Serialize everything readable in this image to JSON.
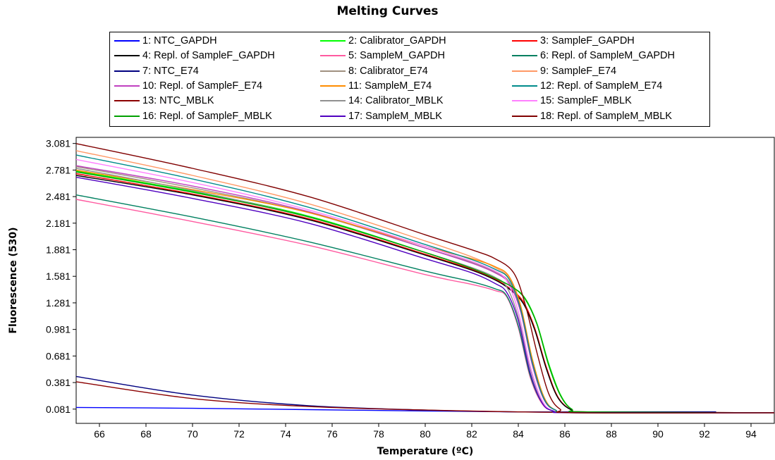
{
  "chart_data": {
    "type": "line",
    "title": "Melting Curves",
    "xlabel": "Temperature (ºC)",
    "ylabel": "Fluorescence (530)",
    "xlim": [
      65,
      95
    ],
    "ylim": [
      -0.08,
      3.15
    ],
    "x_ticks": [
      66,
      68,
      70,
      72,
      74,
      76,
      78,
      80,
      82,
      84,
      86,
      88,
      90,
      92,
      94
    ],
    "y_ticks": [
      0.081,
      0.381,
      0.681,
      0.981,
      1.281,
      1.581,
      1.881,
      2.181,
      2.481,
      2.781,
      3.081
    ],
    "y_tick_labels": [
      "0.081",
      "0.381",
      "0.681",
      "0.981",
      "1.281",
      "1.581",
      "1.881",
      "2.181",
      "2.481",
      "2.781",
      "3.081"
    ],
    "grid": false,
    "legend_position": "top",
    "series": [
      {
        "name": "1: NTC_GAPDH",
        "color": "#0000ff",
        "x": [
          65,
          70,
          75,
          80,
          84,
          88,
          95
        ],
        "y": [
          0.1,
          0.09,
          0.075,
          0.06,
          0.05,
          0.045,
          0.04
        ]
      },
      {
        "name": "2: Calibrator_GAPDH",
        "color": "#00ff00",
        "x": [
          65,
          70,
          75,
          80,
          82,
          83,
          83.8,
          84.3,
          84.8,
          85.3,
          85.8,
          86.3,
          87,
          95
        ],
        "y": [
          2.77,
          2.54,
          2.26,
          1.85,
          1.67,
          1.56,
          1.45,
          1.33,
          1.05,
          0.6,
          0.25,
          0.08,
          0.05,
          0.04
        ]
      },
      {
        "name": "3: SampleF_GAPDH",
        "color": "#ff0000",
        "x": [
          65,
          70,
          75,
          80,
          82,
          83,
          83.6,
          84.2,
          84.7,
          85.2,
          85.7,
          86.3,
          87,
          95
        ],
        "y": [
          2.74,
          2.51,
          2.23,
          1.83,
          1.66,
          1.55,
          1.45,
          1.3,
          1.0,
          0.56,
          0.22,
          0.07,
          0.05,
          0.04
        ]
      },
      {
        "name": "4: Repl. of SampleF_GAPDH",
        "color": "#000000",
        "x": [
          65,
          70,
          75,
          80,
          82,
          83,
          83.6,
          84.2,
          84.7,
          85.2,
          85.7,
          86.3,
          87,
          95
        ],
        "y": [
          2.72,
          2.5,
          2.22,
          1.82,
          1.65,
          1.54,
          1.44,
          1.28,
          0.98,
          0.54,
          0.21,
          0.07,
          0.05,
          0.04
        ]
      },
      {
        "name": "5: SampleM_GAPDH",
        "color": "#ff5aa0",
        "x": [
          65,
          70,
          75,
          80,
          82,
          83,
          83.5,
          84,
          84.5,
          85,
          85.5,
          86.5,
          95
        ],
        "y": [
          2.45,
          2.2,
          1.93,
          1.6,
          1.49,
          1.42,
          1.35,
          1.0,
          0.45,
          0.15,
          0.06,
          0.04,
          0.04
        ]
      },
      {
        "name": "6: Repl. of SampleM_GAPDH",
        "color": "#008060",
        "x": [
          65,
          70,
          75,
          80,
          82,
          83,
          83.5,
          84,
          84.5,
          85,
          85.5,
          86.5,
          95
        ],
        "y": [
          2.5,
          2.25,
          1.97,
          1.64,
          1.52,
          1.44,
          1.36,
          1.02,
          0.47,
          0.16,
          0.06,
          0.04,
          0.04
        ]
      },
      {
        "name": "7: NTC_E74",
        "color": "#000080",
        "x": [
          65,
          70,
          75,
          80,
          84,
          88,
          92.5
        ],
        "y": [
          0.45,
          0.24,
          0.12,
          0.07,
          0.05,
          0.05,
          0.05
        ]
      },
      {
        "name": "8: Calibrator_E74",
        "color": "#a09080",
        "x": [
          65,
          70,
          75,
          80,
          82,
          83,
          83.6,
          84.1,
          84.6,
          85.1,
          85.6,
          86.5,
          95
        ],
        "y": [
          2.82,
          2.58,
          2.3,
          1.9,
          1.74,
          1.63,
          1.52,
          1.2,
          0.6,
          0.2,
          0.07,
          0.04,
          0.04
        ]
      },
      {
        "name": "9: SampleF_E74",
        "color": "#ff9966",
        "x": [
          65,
          70,
          75,
          80,
          82,
          83,
          83.6,
          84.1,
          84.6,
          85.1,
          85.6,
          86.5,
          95
        ],
        "y": [
          3.0,
          2.72,
          2.4,
          1.98,
          1.8,
          1.68,
          1.56,
          1.22,
          0.62,
          0.21,
          0.07,
          0.04,
          0.04
        ]
      },
      {
        "name": "10: Repl. of SampleF_E74",
        "color": "#c040c0",
        "x": [
          65,
          70,
          75,
          80,
          82,
          83,
          83.6,
          84.1,
          84.6,
          85.1,
          85.6,
          86.5,
          95
        ],
        "y": [
          2.83,
          2.6,
          2.31,
          1.9,
          1.73,
          1.62,
          1.5,
          1.18,
          0.58,
          0.19,
          0.07,
          0.04,
          0.04
        ]
      },
      {
        "name": "11: SampleM_E74",
        "color": "#ff8c00",
        "x": [
          65,
          70,
          75,
          80,
          82,
          83,
          83.6,
          84.1,
          84.6,
          85.1,
          85.6,
          86.5,
          95
        ],
        "y": [
          2.78,
          2.56,
          2.3,
          1.92,
          1.78,
          1.69,
          1.58,
          1.25,
          0.65,
          0.22,
          0.07,
          0.04,
          0.04
        ]
      },
      {
        "name": "12: Repl. of SampleM_E74",
        "color": "#008b8b",
        "x": [
          65,
          70,
          75,
          80,
          82,
          83,
          83.6,
          84.1,
          84.6,
          85.1,
          85.6,
          86.5,
          95
        ],
        "y": [
          2.95,
          2.68,
          2.36,
          1.94,
          1.77,
          1.66,
          1.55,
          1.21,
          0.61,
          0.2,
          0.07,
          0.04,
          0.04
        ]
      },
      {
        "name": "13: NTC_MBLK",
        "color": "#8b0000",
        "x": [
          65,
          70,
          75,
          80,
          84,
          88,
          95
        ],
        "y": [
          0.39,
          0.2,
          0.11,
          0.07,
          0.05,
          0.04,
          0.04
        ]
      },
      {
        "name": "14: Calibrator_MBLK",
        "color": "#909090",
        "x": [
          65,
          70,
          75,
          80,
          82,
          83,
          83.5,
          84,
          84.5,
          85,
          85.5,
          86.5,
          95
        ],
        "y": [
          2.8,
          2.55,
          2.25,
          1.85,
          1.68,
          1.57,
          1.46,
          1.12,
          0.55,
          0.18,
          0.06,
          0.04,
          0.04
        ]
      },
      {
        "name": "15: SampleF_MBLK",
        "color": "#ff80ff",
        "x": [
          65,
          70,
          75,
          80,
          82,
          83,
          83.5,
          84,
          84.5,
          85,
          85.5,
          86.5,
          95
        ],
        "y": [
          2.9,
          2.64,
          2.33,
          1.92,
          1.75,
          1.64,
          1.53,
          1.18,
          0.58,
          0.19,
          0.06,
          0.04,
          0.04
        ]
      },
      {
        "name": "16: Repl. of SampleF_MBLK",
        "color": "#00a000",
        "x": [
          65,
          70,
          75,
          80,
          82,
          83,
          83.8,
          84.3,
          84.8,
          85.3,
          85.8,
          86.3,
          87,
          95
        ],
        "y": [
          2.76,
          2.53,
          2.25,
          1.85,
          1.67,
          1.56,
          1.45,
          1.32,
          1.04,
          0.58,
          0.24,
          0.08,
          0.05,
          0.04
        ]
      },
      {
        "name": "17: SampleM_MBLK",
        "color": "#5000c0",
        "x": [
          65,
          70,
          75,
          80,
          82,
          83,
          83.5,
          84,
          84.5,
          85,
          85.5,
          86.5,
          95
        ],
        "y": [
          2.7,
          2.46,
          2.18,
          1.78,
          1.62,
          1.5,
          1.4,
          1.08,
          0.5,
          0.16,
          0.06,
          0.04,
          0.04
        ]
      },
      {
        "name": "18: Repl. of SampleM_MBLK",
        "color": "#800000",
        "x": [
          65,
          70,
          75,
          80,
          82,
          83,
          83.8,
          84.3,
          84.8,
          85.3,
          85.8,
          86.5,
          95
        ],
        "y": [
          3.08,
          2.8,
          2.48,
          2.05,
          1.88,
          1.78,
          1.62,
          1.26,
          0.72,
          0.26,
          0.08,
          0.04,
          0.04
        ]
      }
    ]
  }
}
